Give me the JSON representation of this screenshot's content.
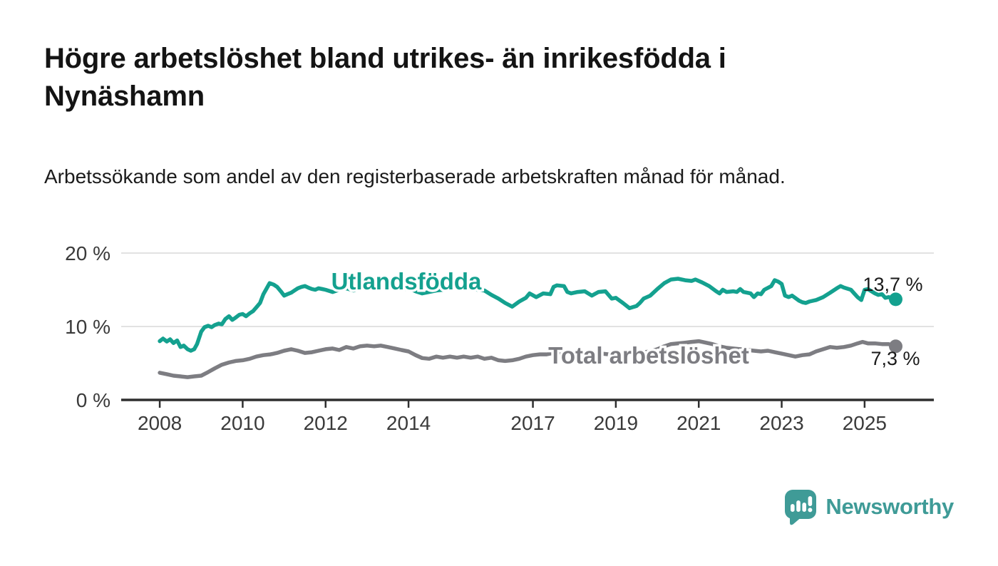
{
  "header": {
    "title": "Högre arbetslöshet bland utrikes- än inrikesfödda i Nynäshamn",
    "subtitle": "Arbetssökande som andel av den registerbaserade arbetskraften månad för månad."
  },
  "footer": {
    "brand": "Newsworthy",
    "logo_color": "#3f9b97"
  },
  "colors": {
    "foreign_born_line": "#14a18f",
    "total_line": "#7d7d82",
    "axis": "#2f2f2f",
    "gridline": "#d9d9d9",
    "tick_label": "#3a3a3a",
    "value_label": "#1a1a1a"
  },
  "chart_data": {
    "type": "line",
    "title": "Högre arbetslöshet bland utrikes- än inrikesfödda i Nynäshamn",
    "subtitle": "Arbetssökande som andel av den registerbaserade arbetskraften månad för månad.",
    "xlabel": "",
    "ylabel": "",
    "ylim": [
      0,
      22.4
    ],
    "xlim": [
      2007.07,
      2026.67
    ],
    "grid": "horizontal",
    "legend": "inline-labels",
    "y_ticks": [
      {
        "value": 0,
        "label": "0 %"
      },
      {
        "value": 10,
        "label": "10 %"
      },
      {
        "value": 20,
        "label": "20 %"
      }
    ],
    "x_ticks": [
      {
        "value": 2008,
        "label": "2008"
      },
      {
        "value": 2010,
        "label": "2010"
      },
      {
        "value": 2012,
        "label": "2012"
      },
      {
        "value": 2014,
        "label": "2014"
      },
      {
        "value": 2017,
        "label": "2017"
      },
      {
        "value": 2019,
        "label": "2019"
      },
      {
        "value": 2021,
        "label": "2021"
      },
      {
        "value": 2023,
        "label": "2023"
      },
      {
        "value": 2025,
        "label": "2025"
      }
    ],
    "series": [
      {
        "name": "Utlandsfödda",
        "color": "#14a18f",
        "end_value": 13.7,
        "end_label": "13,7 %",
        "points": [
          [
            2008.0,
            8.0
          ],
          [
            2008.08,
            8.35
          ],
          [
            2008.17,
            7.95
          ],
          [
            2008.25,
            8.25
          ],
          [
            2008.33,
            7.75
          ],
          [
            2008.42,
            8.1
          ],
          [
            2008.5,
            7.2
          ],
          [
            2008.58,
            7.4
          ],
          [
            2008.67,
            6.9
          ],
          [
            2008.75,
            6.7
          ],
          [
            2008.83,
            6.9
          ],
          [
            2008.9,
            7.6
          ],
          [
            2009.0,
            9.3
          ],
          [
            2009.08,
            9.9
          ],
          [
            2009.17,
            10.1
          ],
          [
            2009.25,
            9.9
          ],
          [
            2009.33,
            10.2
          ],
          [
            2009.42,
            10.4
          ],
          [
            2009.5,
            10.3
          ],
          [
            2009.58,
            11.0
          ],
          [
            2009.67,
            11.4
          ],
          [
            2009.75,
            10.9
          ],
          [
            2009.83,
            11.2
          ],
          [
            2009.92,
            11.6
          ],
          [
            2010.0,
            11.7
          ],
          [
            2010.08,
            11.4
          ],
          [
            2010.17,
            11.8
          ],
          [
            2010.25,
            12.1
          ],
          [
            2010.33,
            12.6
          ],
          [
            2010.42,
            13.2
          ],
          [
            2010.5,
            14.4
          ],
          [
            2010.58,
            15.2
          ],
          [
            2010.65,
            15.9
          ],
          [
            2010.75,
            15.7
          ],
          [
            2010.83,
            15.4
          ],
          [
            2010.92,
            14.8
          ],
          [
            2011.0,
            14.2
          ],
          [
            2011.08,
            14.4
          ],
          [
            2011.17,
            14.6
          ],
          [
            2011.25,
            14.9
          ],
          [
            2011.33,
            15.2
          ],
          [
            2011.42,
            15.4
          ],
          [
            2011.5,
            15.5
          ],
          [
            2011.58,
            15.3
          ],
          [
            2011.67,
            15.1
          ],
          [
            2011.75,
            15.0
          ],
          [
            2011.83,
            15.2
          ],
          [
            2011.92,
            15.1
          ],
          [
            2012.0,
            15.0
          ],
          [
            2012.17,
            14.7
          ],
          [
            2012.33,
            15.0
          ],
          [
            2012.5,
            15.2
          ],
          [
            2012.67,
            14.9
          ],
          [
            2012.83,
            15.1
          ],
          [
            2013.0,
            15.3
          ],
          [
            2013.17,
            15.5
          ],
          [
            2013.33,
            15.2
          ],
          [
            2013.5,
            15.4
          ],
          [
            2013.67,
            15.1
          ],
          [
            2013.83,
            15.0
          ],
          [
            2014.0,
            15.2
          ],
          [
            2014.17,
            14.8
          ],
          [
            2014.33,
            14.5
          ],
          [
            2014.5,
            14.7
          ],
          [
            2014.67,
            14.9
          ],
          [
            2014.83,
            15.0
          ],
          [
            2015.0,
            15.1
          ],
          [
            2015.17,
            15.3
          ],
          [
            2015.33,
            15.1
          ],
          [
            2015.5,
            15.2
          ],
          [
            2015.67,
            15.0
          ],
          [
            2015.83,
            14.9
          ],
          [
            2016.0,
            14.3
          ],
          [
            2016.17,
            13.8
          ],
          [
            2016.33,
            13.2
          ],
          [
            2016.5,
            12.7
          ],
          [
            2016.67,
            13.4
          ],
          [
            2016.83,
            13.9
          ],
          [
            2016.92,
            14.5
          ],
          [
            2017.08,
            14.0
          ],
          [
            2017.25,
            14.5
          ],
          [
            2017.42,
            14.4
          ],
          [
            2017.5,
            15.4
          ],
          [
            2017.58,
            15.6
          ],
          [
            2017.75,
            15.5
          ],
          [
            2017.83,
            14.7
          ],
          [
            2017.92,
            14.5
          ],
          [
            2018.08,
            14.7
          ],
          [
            2018.25,
            14.8
          ],
          [
            2018.42,
            14.2
          ],
          [
            2018.58,
            14.7
          ],
          [
            2018.75,
            14.8
          ],
          [
            2018.9,
            13.8
          ],
          [
            2019.0,
            13.9
          ],
          [
            2019.17,
            13.2
          ],
          [
            2019.33,
            12.5
          ],
          [
            2019.5,
            12.8
          ],
          [
            2019.58,
            13.2
          ],
          [
            2019.67,
            13.8
          ],
          [
            2019.83,
            14.2
          ],
          [
            2020.0,
            15.1
          ],
          [
            2020.17,
            15.9
          ],
          [
            2020.33,
            16.4
          ],
          [
            2020.5,
            16.5
          ],
          [
            2020.67,
            16.3
          ],
          [
            2020.83,
            16.2
          ],
          [
            2020.92,
            16.4
          ],
          [
            2021.08,
            16.0
          ],
          [
            2021.25,
            15.5
          ],
          [
            2021.42,
            14.8
          ],
          [
            2021.5,
            14.5
          ],
          [
            2021.58,
            15.0
          ],
          [
            2021.67,
            14.7
          ],
          [
            2021.83,
            14.8
          ],
          [
            2021.92,
            14.7
          ],
          [
            2022.0,
            15.1
          ],
          [
            2022.08,
            14.7
          ],
          [
            2022.25,
            14.5
          ],
          [
            2022.33,
            14.0
          ],
          [
            2022.42,
            14.5
          ],
          [
            2022.5,
            14.4
          ],
          [
            2022.58,
            15.0
          ],
          [
            2022.75,
            15.5
          ],
          [
            2022.83,
            16.3
          ],
          [
            2022.92,
            16.1
          ],
          [
            2023.0,
            15.8
          ],
          [
            2023.08,
            14.2
          ],
          [
            2023.17,
            14.0
          ],
          [
            2023.25,
            14.2
          ],
          [
            2023.42,
            13.5
          ],
          [
            2023.5,
            13.3
          ],
          [
            2023.58,
            13.2
          ],
          [
            2023.67,
            13.4
          ],
          [
            2023.83,
            13.6
          ],
          [
            2024.0,
            14.0
          ],
          [
            2024.17,
            14.6
          ],
          [
            2024.33,
            15.2
          ],
          [
            2024.42,
            15.5
          ],
          [
            2024.5,
            15.3
          ],
          [
            2024.67,
            15.0
          ],
          [
            2024.75,
            14.5
          ],
          [
            2024.83,
            14.0
          ],
          [
            2024.92,
            13.6
          ],
          [
            2025.0,
            15.0
          ],
          [
            2025.08,
            15.1
          ],
          [
            2025.25,
            14.5
          ],
          [
            2025.33,
            14.3
          ],
          [
            2025.42,
            14.4
          ],
          [
            2025.5,
            13.9
          ],
          [
            2025.58,
            14.0
          ],
          [
            2025.75,
            13.7
          ]
        ]
      },
      {
        "name": "Total arbetslöshet",
        "color": "#7d7d82",
        "end_value": 7.3,
        "end_label": "7,3 %",
        "points": [
          [
            2008.0,
            3.7
          ],
          [
            2008.17,
            3.5
          ],
          [
            2008.33,
            3.3
          ],
          [
            2008.5,
            3.2
          ],
          [
            2008.67,
            3.1
          ],
          [
            2008.83,
            3.2
          ],
          [
            2009.0,
            3.3
          ],
          [
            2009.17,
            3.8
          ],
          [
            2009.33,
            4.3
          ],
          [
            2009.5,
            4.8
          ],
          [
            2009.67,
            5.1
          ],
          [
            2009.83,
            5.3
          ],
          [
            2010.0,
            5.4
          ],
          [
            2010.17,
            5.6
          ],
          [
            2010.33,
            5.9
          ],
          [
            2010.5,
            6.1
          ],
          [
            2010.67,
            6.2
          ],
          [
            2010.83,
            6.4
          ],
          [
            2011.0,
            6.7
          ],
          [
            2011.17,
            6.9
          ],
          [
            2011.33,
            6.7
          ],
          [
            2011.5,
            6.4
          ],
          [
            2011.67,
            6.5
          ],
          [
            2011.83,
            6.7
          ],
          [
            2012.0,
            6.9
          ],
          [
            2012.17,
            7.0
          ],
          [
            2012.33,
            6.8
          ],
          [
            2012.5,
            7.2
          ],
          [
            2012.67,
            7.0
          ],
          [
            2012.83,
            7.3
          ],
          [
            2013.0,
            7.4
          ],
          [
            2013.17,
            7.3
          ],
          [
            2013.33,
            7.4
          ],
          [
            2013.5,
            7.2
          ],
          [
            2013.67,
            7.0
          ],
          [
            2013.83,
            6.8
          ],
          [
            2014.0,
            6.6
          ],
          [
            2014.17,
            6.1
          ],
          [
            2014.33,
            5.7
          ],
          [
            2014.5,
            5.6
          ],
          [
            2014.67,
            5.9
          ],
          [
            2014.83,
            5.75
          ],
          [
            2015.0,
            5.9
          ],
          [
            2015.17,
            5.75
          ],
          [
            2015.33,
            5.9
          ],
          [
            2015.5,
            5.75
          ],
          [
            2015.67,
            5.9
          ],
          [
            2015.83,
            5.6
          ],
          [
            2016.0,
            5.75
          ],
          [
            2016.17,
            5.4
          ],
          [
            2016.33,
            5.3
          ],
          [
            2016.5,
            5.4
          ],
          [
            2016.67,
            5.6
          ],
          [
            2016.83,
            5.9
          ],
          [
            2017.0,
            6.1
          ],
          [
            2017.17,
            6.2
          ],
          [
            2017.33,
            6.2
          ],
          [
            2017.5,
            6.4
          ],
          [
            2017.67,
            6.3
          ],
          [
            2017.83,
            6.4
          ],
          [
            2018.0,
            6.3
          ],
          [
            2018.17,
            6.2
          ],
          [
            2018.33,
            6.3
          ],
          [
            2018.5,
            6.2
          ],
          [
            2018.67,
            6.3
          ],
          [
            2018.83,
            6.2
          ],
          [
            2019.0,
            6.3
          ],
          [
            2019.17,
            6.2
          ],
          [
            2019.33,
            6.3
          ],
          [
            2019.5,
            6.4
          ],
          [
            2019.67,
            6.5
          ],
          [
            2019.83,
            6.6
          ],
          [
            2020.0,
            6.9
          ],
          [
            2020.17,
            7.3
          ],
          [
            2020.33,
            7.6
          ],
          [
            2020.5,
            7.7
          ],
          [
            2020.67,
            7.8
          ],
          [
            2020.83,
            7.9
          ],
          [
            2021.0,
            8.0
          ],
          [
            2021.17,
            7.8
          ],
          [
            2021.33,
            7.6
          ],
          [
            2021.5,
            7.3
          ],
          [
            2021.67,
            7.1
          ],
          [
            2021.83,
            7.0
          ],
          [
            2022.0,
            6.9
          ],
          [
            2022.17,
            6.8
          ],
          [
            2022.33,
            6.7
          ],
          [
            2022.5,
            6.6
          ],
          [
            2022.67,
            6.7
          ],
          [
            2022.83,
            6.5
          ],
          [
            2023.0,
            6.3
          ],
          [
            2023.17,
            6.1
          ],
          [
            2023.33,
            5.9
          ],
          [
            2023.5,
            6.1
          ],
          [
            2023.67,
            6.2
          ],
          [
            2023.83,
            6.6
          ],
          [
            2024.0,
            6.9
          ],
          [
            2024.17,
            7.2
          ],
          [
            2024.33,
            7.1
          ],
          [
            2024.5,
            7.2
          ],
          [
            2024.67,
            7.4
          ],
          [
            2024.83,
            7.7
          ],
          [
            2024.95,
            7.9
          ],
          [
            2025.08,
            7.7
          ],
          [
            2025.25,
            7.7
          ],
          [
            2025.42,
            7.6
          ],
          [
            2025.58,
            7.6
          ],
          [
            2025.75,
            7.3
          ]
        ]
      }
    ]
  }
}
